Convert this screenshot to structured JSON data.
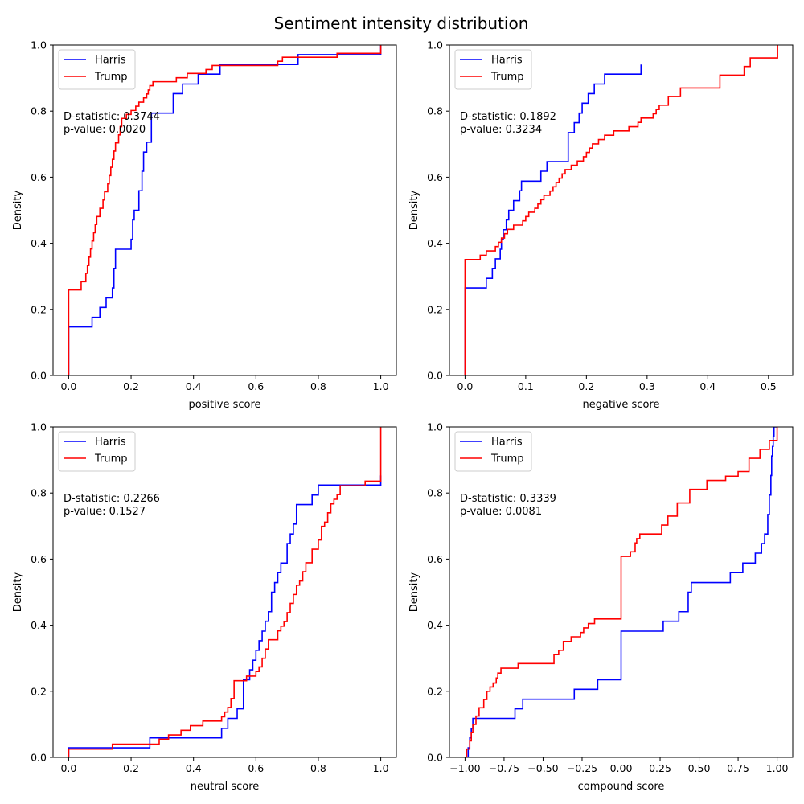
{
  "figure": {
    "title": "Sentiment intensity distribution"
  },
  "colors": {
    "Harris": "#0000ff",
    "Trump": "#ff0000"
  },
  "chart_data": [
    {
      "type": "line",
      "xlabel": "positive score",
      "ylabel": "Density",
      "xlim": [
        -0.05,
        1.05
      ],
      "ylim": [
        0,
        1
      ],
      "xticks": [
        0,
        0.2,
        0.4,
        0.6,
        0.8,
        1.0
      ],
      "xtick_labels": [
        "0.0",
        "0.2",
        "0.4",
        "0.6",
        "0.8",
        "1.0"
      ],
      "yticks": [
        0,
        0.2,
        0.4,
        0.6,
        0.8,
        1.0
      ],
      "ytick_labels": [
        "0.0",
        "0.2",
        "0.4",
        "0.6",
        "0.8",
        "1.0"
      ],
      "legend": "upper-left",
      "stats": [
        "D-statistic: 0.3744",
        "p-value: 0.0020"
      ],
      "series": [
        {
          "name": "Harris",
          "x": [
            0.0,
            0.0,
            0.075,
            0.1,
            0.12,
            0.14,
            0.145,
            0.15,
            0.15,
            0.2,
            0.205,
            0.21,
            0.225,
            0.235,
            0.24,
            0.25,
            0.265,
            0.275,
            0.335,
            0.365,
            0.415,
            0.485,
            0.735,
            1.0
          ],
          "y": [
            0.0,
            0.147,
            0.176,
            0.206,
            0.235,
            0.265,
            0.324,
            0.353,
            0.382,
            0.412,
            0.471,
            0.5,
            0.559,
            0.618,
            0.676,
            0.706,
            0.794,
            0.794,
            0.853,
            0.882,
            0.912,
            0.941,
            0.971,
            1.0
          ]
        },
        {
          "name": "Trump",
          "x": [
            0.0,
            0.0,
            0.04,
            0.055,
            0.06,
            0.065,
            0.07,
            0.075,
            0.08,
            0.085,
            0.09,
            0.1,
            0.11,
            0.115,
            0.125,
            0.13,
            0.135,
            0.14,
            0.145,
            0.15,
            0.16,
            0.165,
            0.17,
            0.18,
            0.185,
            0.2,
            0.215,
            0.225,
            0.24,
            0.25,
            0.255,
            0.26,
            0.265,
            0.27,
            0.33,
            0.345,
            0.38,
            0.44,
            0.46,
            0.49,
            0.67,
            0.685,
            0.73,
            0.86,
            1.0
          ],
          "y": [
            0.0,
            0.259,
            0.284,
            0.309,
            0.333,
            0.358,
            0.383,
            0.407,
            0.432,
            0.457,
            0.481,
            0.506,
            0.531,
            0.556,
            0.58,
            0.605,
            0.63,
            0.654,
            0.679,
            0.704,
            0.728,
            0.753,
            0.778,
            0.778,
            0.79,
            0.802,
            0.815,
            0.827,
            0.84,
            0.852,
            0.864,
            0.877,
            0.877,
            0.889,
            0.889,
            0.901,
            0.914,
            0.926,
            0.938,
            0.938,
            0.951,
            0.963,
            0.963,
            0.975,
            1.0
          ]
        }
      ]
    },
    {
      "type": "line",
      "xlabel": "negative score",
      "ylabel": "Density",
      "xlim": [
        -0.0257,
        0.54
      ],
      "ylim": [
        0,
        1
      ],
      "xticks": [
        0,
        0.1,
        0.2,
        0.3,
        0.4,
        0.5
      ],
      "xtick_labels": [
        "0.0",
        "0.1",
        "0.2",
        "0.3",
        "0.4",
        "0.5"
      ],
      "yticks": [
        0,
        0.2,
        0.4,
        0.6,
        0.8,
        1.0
      ],
      "ytick_labels": [
        "0.0",
        "0.2",
        "0.4",
        "0.6",
        "0.8",
        "1.0"
      ],
      "legend": "upper-left",
      "stats": [
        "D-statistic: 0.1892",
        "p-value: 0.3234"
      ],
      "series": [
        {
          "name": "Harris",
          "x": [
            0.0,
            0.0,
            0.035,
            0.045,
            0.05,
            0.058,
            0.06,
            0.063,
            0.068,
            0.072,
            0.08,
            0.09,
            0.093,
            0.125,
            0.135,
            0.17,
            0.18,
            0.188,
            0.193,
            0.203,
            0.213,
            0.23,
            0.29
          ],
          "y": [
            0.0,
            0.265,
            0.294,
            0.324,
            0.353,
            0.382,
            0.412,
            0.441,
            0.471,
            0.5,
            0.529,
            0.559,
            0.588,
            0.618,
            0.647,
            0.735,
            0.765,
            0.794,
            0.824,
            0.853,
            0.882,
            0.912,
            0.941
          ]
        },
        {
          "name": "Trump",
          "x": [
            0.0,
            0.0,
            0.025,
            0.035,
            0.05,
            0.055,
            0.06,
            0.065,
            0.07,
            0.08,
            0.095,
            0.1,
            0.105,
            0.115,
            0.12,
            0.125,
            0.13,
            0.14,
            0.145,
            0.15,
            0.155,
            0.16,
            0.165,
            0.175,
            0.185,
            0.195,
            0.2,
            0.205,
            0.21,
            0.22,
            0.23,
            0.245,
            0.27,
            0.285,
            0.29,
            0.31,
            0.315,
            0.32,
            0.335,
            0.355,
            0.42,
            0.46,
            0.47,
            0.515
          ],
          "y": [
            0.0,
            0.351,
            0.364,
            0.377,
            0.39,
            0.403,
            0.416,
            0.429,
            0.442,
            0.455,
            0.468,
            0.481,
            0.494,
            0.506,
            0.519,
            0.532,
            0.545,
            0.558,
            0.571,
            0.584,
            0.597,
            0.61,
            0.623,
            0.636,
            0.649,
            0.662,
            0.675,
            0.688,
            0.701,
            0.714,
            0.727,
            0.74,
            0.753,
            0.766,
            0.779,
            0.792,
            0.805,
            0.818,
            0.844,
            0.87,
            0.909,
            0.935,
            0.961,
            1.0
          ]
        }
      ]
    },
    {
      "type": "line",
      "xlabel": "neutral score",
      "ylabel": "Density",
      "xlim": [
        -0.05,
        1.05
      ],
      "ylim": [
        0,
        1
      ],
      "xticks": [
        0,
        0.2,
        0.4,
        0.6,
        0.8,
        1.0
      ],
      "xtick_labels": [
        "0.0",
        "0.2",
        "0.4",
        "0.6",
        "0.8",
        "1.0"
      ],
      "yticks": [
        0,
        0.2,
        0.4,
        0.6,
        0.8,
        1.0
      ],
      "ytick_labels": [
        "0.0",
        "0.2",
        "0.4",
        "0.6",
        "0.8",
        "1.0"
      ],
      "legend": "upper-left",
      "stats": [
        "D-statistic: 0.2266",
        "p-value: 0.1527"
      ],
      "series": [
        {
          "name": "Harris",
          "x": [
            0.0,
            0.0,
            0.26,
            0.49,
            0.51,
            0.54,
            0.56,
            0.58,
            0.59,
            0.6,
            0.61,
            0.62,
            0.63,
            0.64,
            0.65,
            0.66,
            0.67,
            0.68,
            0.7,
            0.71,
            0.72,
            0.73,
            0.78,
            0.8,
            1.0
          ],
          "y": [
            0.0,
            0.029,
            0.059,
            0.088,
            0.118,
            0.147,
            0.235,
            0.265,
            0.294,
            0.324,
            0.353,
            0.382,
            0.412,
            0.441,
            0.5,
            0.529,
            0.559,
            0.588,
            0.647,
            0.676,
            0.706,
            0.765,
            0.794,
            0.824,
            0.853
          ]
        },
        {
          "name": "Trump",
          "x": [
            0.0,
            0.0,
            0.14,
            0.29,
            0.32,
            0.36,
            0.39,
            0.43,
            0.49,
            0.5,
            0.51,
            0.52,
            0.53,
            0.55,
            0.57,
            0.6,
            0.61,
            0.62,
            0.63,
            0.64,
            0.67,
            0.68,
            0.69,
            0.7,
            0.71,
            0.72,
            0.73,
            0.74,
            0.75,
            0.76,
            0.78,
            0.8,
            0.81,
            0.82,
            0.83,
            0.84,
            0.85,
            0.86,
            0.87,
            0.9,
            0.95,
            1.0
          ],
          "y": [
            0.0,
            0.025,
            0.04,
            0.055,
            0.068,
            0.082,
            0.096,
            0.11,
            0.123,
            0.137,
            0.151,
            0.178,
            0.232,
            0.232,
            0.246,
            0.26,
            0.274,
            0.3,
            0.328,
            0.356,
            0.383,
            0.397,
            0.411,
            0.438,
            0.466,
            0.493,
            0.521,
            0.534,
            0.562,
            0.589,
            0.63,
            0.658,
            0.699,
            0.712,
            0.74,
            0.767,
            0.781,
            0.795,
            0.822,
            0.822,
            0.836,
            1.0
          ]
        }
      ]
    },
    {
      "type": "line",
      "xlabel": "compound score",
      "ylabel": "Density",
      "xlim": [
        -1.1,
        1.1
      ],
      "ylim": [
        0,
        1
      ],
      "xticks": [
        -1,
        -0.75,
        -0.5,
        -0.25,
        0,
        0.25,
        0.5,
        0.75,
        1.0
      ],
      "xtick_labels": [
        "−1.00",
        "−0.75",
        "−0.50",
        "−0.25",
        "0.00",
        "0.25",
        "0.50",
        "0.75",
        "1.00"
      ],
      "yticks": [
        0,
        0.2,
        0.4,
        0.6,
        0.8,
        1.0
      ],
      "ytick_labels": [
        "0.0",
        "0.2",
        "0.4",
        "0.6",
        "0.8",
        "1.0"
      ],
      "legend": "upper-left",
      "stats": [
        "D-statistic: 0.3339",
        "p-value: 0.0081"
      ],
      "series": [
        {
          "name": "Harris",
          "x": [
            -0.98,
            -0.98,
            -0.97,
            -0.96,
            -0.95,
            -0.94,
            -0.68,
            -0.63,
            -0.3,
            -0.15,
            0.0,
            0.27,
            0.37,
            0.43,
            0.45,
            0.7,
            0.78,
            0.86,
            0.9,
            0.92,
            0.94,
            0.95,
            0.96,
            0.965,
            0.97,
            0.975,
            0.98,
            0.985,
            1.0
          ],
          "y": [
            0.0,
            0.029,
            0.059,
            0.088,
            0.118,
            0.118,
            0.147,
            0.176,
            0.206,
            0.235,
            0.382,
            0.412,
            0.441,
            0.5,
            0.529,
            0.559,
            0.588,
            0.618,
            0.647,
            0.676,
            0.735,
            0.794,
            0.853,
            0.912,
            0.941,
            0.971,
            1.0,
            1.0,
            1.0
          ]
        },
        {
          "name": "Trump",
          "x": [
            -0.99,
            -0.99,
            -0.97,
            -0.96,
            -0.95,
            -0.93,
            -0.91,
            -0.88,
            -0.86,
            -0.84,
            -0.82,
            -0.8,
            -0.79,
            -0.77,
            -0.66,
            -0.43,
            -0.4,
            -0.37,
            -0.32,
            -0.26,
            -0.24,
            -0.21,
            -0.17,
            0.0,
            0.0,
            0.06,
            0.09,
            0.1,
            0.12,
            0.26,
            0.3,
            0.36,
            0.44,
            0.55,
            0.67,
            0.75,
            0.82,
            0.89,
            0.95,
            1.0
          ],
          "y": [
            0.0,
            0.025,
            0.05,
            0.075,
            0.1,
            0.125,
            0.15,
            0.175,
            0.2,
            0.213,
            0.225,
            0.24,
            0.255,
            0.27,
            0.284,
            0.311,
            0.324,
            0.351,
            0.365,
            0.378,
            0.392,
            0.405,
            0.419,
            0.432,
            0.608,
            0.622,
            0.649,
            0.662,
            0.676,
            0.703,
            0.73,
            0.77,
            0.811,
            0.838,
            0.851,
            0.865,
            0.905,
            0.932,
            0.959,
            1.0
          ]
        }
      ]
    }
  ]
}
